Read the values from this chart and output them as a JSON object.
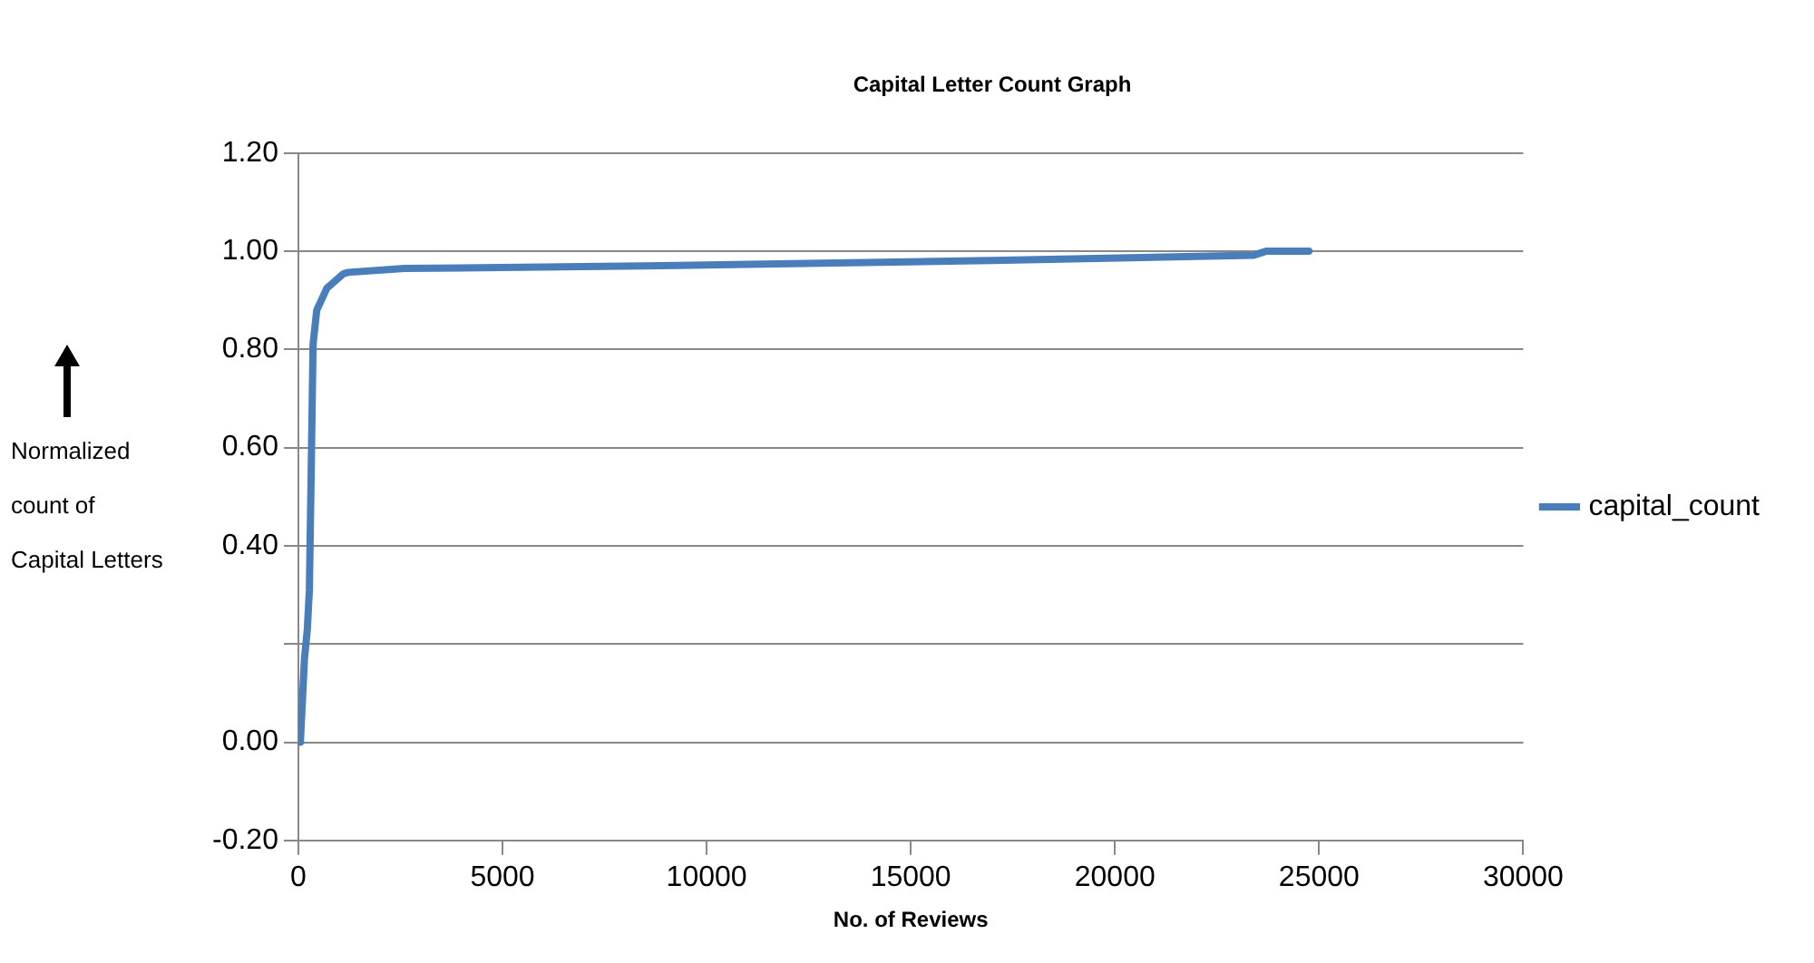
{
  "chart_data": {
    "type": "line",
    "title": "Capital Letter Count Graph",
    "xlabel": "No. of Reviews",
    "ylabel": "Normalized count of Capital Letters",
    "series": [
      {
        "name": "capital_count",
        "color": "#4a7ebb",
        "x": [
          0,
          50,
          150,
          220,
          270,
          320,
          360,
          450,
          700,
          1100,
          1220,
          2600,
          8450,
          17000,
          23400,
          23700,
          24750
        ],
        "values": [
          0,
          0.0,
          0.17,
          0.23,
          0.31,
          0.58,
          0.81,
          0.88,
          0.925,
          0.954,
          0.957,
          0.965,
          0.97,
          0.981,
          0.992,
          1.0,
          1.0
        ]
      }
    ],
    "xlim": [
      0,
      30000
    ],
    "xticks": [
      0,
      5000,
      10000,
      15000,
      20000,
      25000,
      30000
    ],
    "ylim": [
      -0.2,
      1.2
    ],
    "yticks": [
      {
        "value": 1.2,
        "label": "1.20"
      },
      {
        "value": 1,
        "label": "1.00"
      },
      {
        "value": 0.8,
        "label": "0.80"
      },
      {
        "value": 0.6,
        "label": "0.60"
      },
      {
        "value": 0.4,
        "label": "0.40"
      },
      {
        "value": 0.2,
        "label": null
      },
      {
        "value": 0,
        "label": "0.00"
      },
      {
        "value": -0.2,
        "label": "-0.20"
      }
    ],
    "grid": "y",
    "legend": "right",
    "marker": "none",
    "line_style": "solid"
  }
}
